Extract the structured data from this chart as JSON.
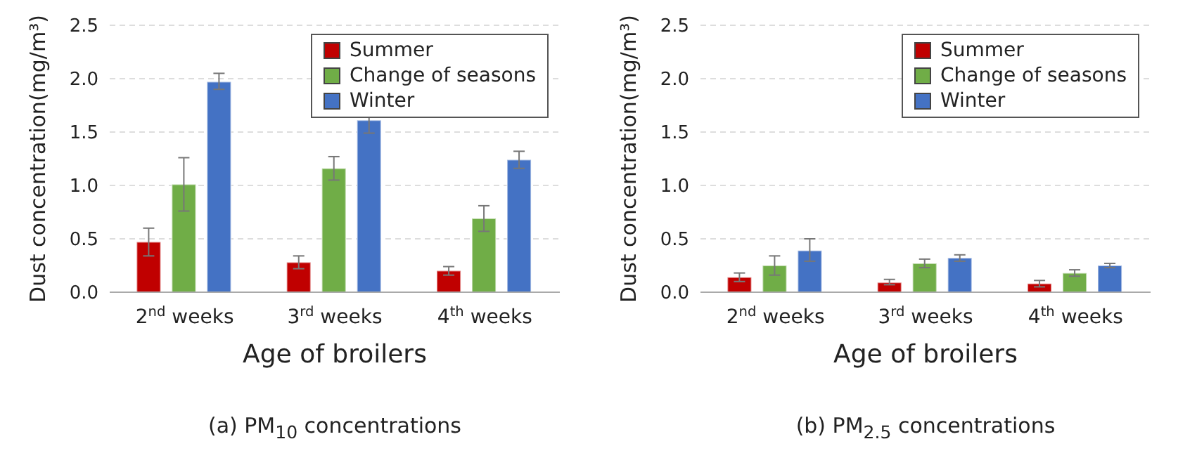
{
  "chart_data": [
    {
      "type": "bar",
      "title": "(a) PM$_{10}$ concentrations",
      "xlabel": "Age of broilers",
      "ylabel": "Dust concentration(mg/m³)",
      "categories": [
        "2$^{nd}$ weeks",
        "3$^{rd}$ weeks",
        "4$^{th}$ weeks"
      ],
      "series": [
        {
          "name": "Summer",
          "color": "#c00000",
          "values": [
            0.47,
            0.28,
            0.2
          ],
          "errors": [
            [
              0.34,
              0.6
            ],
            [
              0.22,
              0.34
            ],
            [
              0.16,
              0.24
            ]
          ]
        },
        {
          "name": "Change of seasons",
          "color": "#70ad47",
          "values": [
            1.01,
            1.16,
            0.69
          ],
          "errors": [
            [
              0.76,
              1.26
            ],
            [
              1.05,
              1.27
            ],
            [
              0.57,
              0.81
            ]
          ]
        },
        {
          "name": "Winter",
          "color": "#4472c4",
          "values": [
            1.97,
            1.61,
            1.24
          ],
          "errors": [
            [
              1.9,
              2.05
            ],
            [
              1.49,
              1.72
            ],
            [
              1.16,
              1.32
            ]
          ]
        }
      ],
      "ylim": [
        0,
        2.5
      ],
      "yticks": [
        {
          "value": 0,
          "label": "0.0"
        },
        0.5,
        {
          "value": 1,
          "label": "1.0"
        },
        1.5,
        {
          "value": 2,
          "label": "2.0"
        },
        2.5
      ],
      "grid": "y",
      "legend": "top right"
    },
    {
      "type": "bar",
      "title": "(b) PM$_{2.5}$ concentrations",
      "xlabel": "Age of broilers",
      "ylabel": "Dust concentration(mg/m³)",
      "categories": [
        "2$^{nd}$ weeks",
        "3$^{rd}$ weeks",
        "4$^{th}$ weeks"
      ],
      "series": [
        {
          "name": "Summer",
          "color": "#c00000",
          "values": [
            0.14,
            0.09,
            0.08
          ],
          "errors": [
            [
              0.1,
              0.18
            ],
            [
              0.07,
              0.12
            ],
            [
              0.05,
              0.11
            ]
          ]
        },
        {
          "name": "Change of seasons",
          "color": "#70ad47",
          "values": [
            0.25,
            0.27,
            0.18
          ],
          "errors": [
            [
              0.16,
              0.34
            ],
            [
              0.23,
              0.31
            ],
            [
              0.15,
              0.21
            ]
          ]
        },
        {
          "name": "Winter",
          "color": "#4472c4",
          "values": [
            0.39,
            0.32,
            0.25
          ],
          "errors": [
            [
              0.29,
              0.5
            ],
            [
              0.29,
              0.35
            ],
            [
              0.23,
              0.27
            ]
          ]
        }
      ],
      "ylim": [
        0,
        2.5
      ],
      "yticks": [
        {
          "value": 0,
          "label": "0.0"
        },
        0.5,
        {
          "value": 1,
          "label": "1.0"
        },
        1.5,
        {
          "value": 2,
          "label": "2.0"
        },
        2.5
      ],
      "grid": "y",
      "legend": "top right"
    }
  ]
}
